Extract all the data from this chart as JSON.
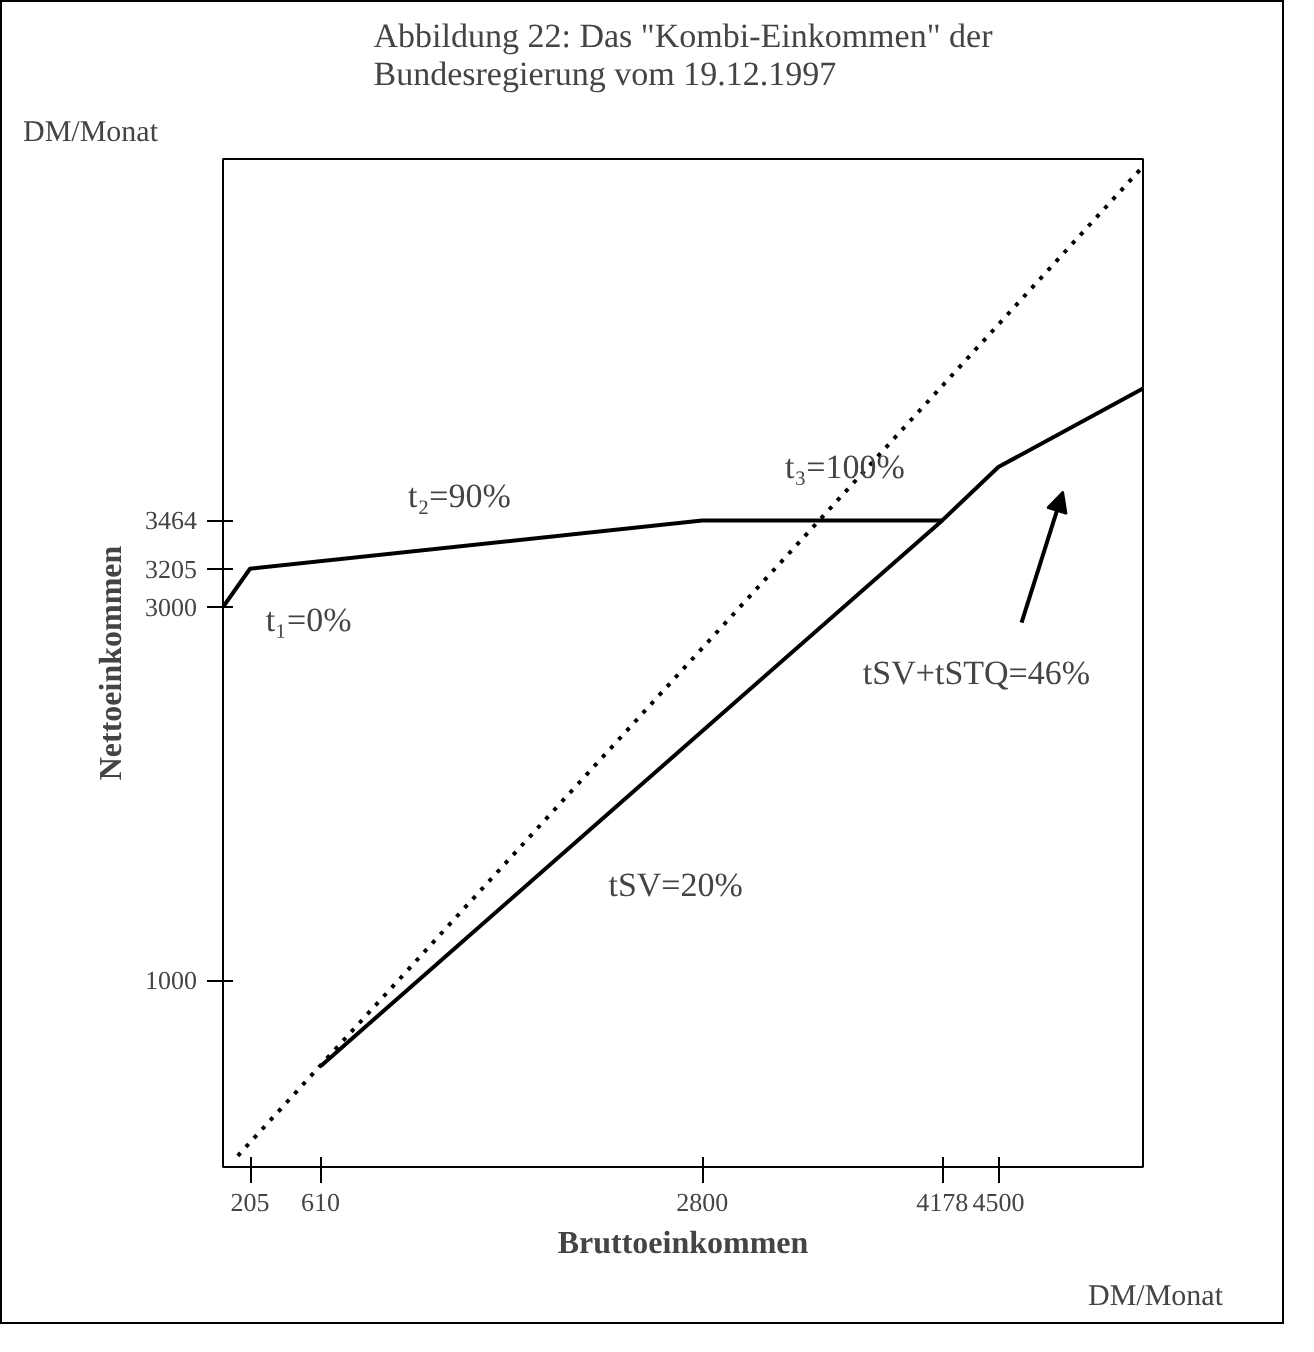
{
  "chart_data": {
    "type": "line",
    "title": "Abbildung 22: Das \"Kombi-Einkommen\" der\nBundesregierung vom 19.12.1997",
    "xlabel": "Bruttoeinkommen",
    "ylabel": "Nettoeinkommen",
    "xlim": [
      50,
      5330
    ],
    "ylim": [
      0,
      5400
    ],
    "xticks": [
      205,
      610,
      2800,
      4178,
      4500
    ],
    "yticks": [
      1000,
      3000,
      3205,
      3464
    ],
    "grid": false,
    "marker": "none",
    "series": [
      {
        "color": "#000000",
        "line_style": "solid",
        "x": [
          50,
          205,
          2800,
          4178
        ],
        "values": [
          3000,
          3205,
          3464,
          3464
        ]
      },
      {
        "color": "#000000",
        "line_style": "solid",
        "x": [
          610,
          4178,
          4500,
          5330
        ],
        "values": [
          540,
          3464,
          3750,
          4170
        ]
      },
      {
        "color": "#000000",
        "line_style": "dotted",
        "x": [
          135,
          5330
        ],
        "values": [
          60,
          5360
        ]
      }
    ],
    "annotations": [
      "DM/Monat",
      "DM/Monat",
      "t₁=0%",
      "t₂=90%",
      "t₃=100%",
      "tSV=20%",
      "tSV+tSTQ=46%"
    ]
  }
}
